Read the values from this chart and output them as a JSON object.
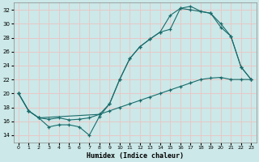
{
  "xlabel": "Humidex (Indice chaleur)",
  "bg_color": "#cce8e8",
  "grid_color": "#e8c8c8",
  "line_color": "#1a6b6b",
  "xlim": [
    -0.5,
    23.5
  ],
  "ylim": [
    13,
    33
  ],
  "yticks": [
    14,
    16,
    18,
    20,
    22,
    24,
    26,
    28,
    30,
    32
  ],
  "xticks": [
    0,
    1,
    2,
    3,
    4,
    5,
    6,
    7,
    8,
    9,
    10,
    11,
    12,
    13,
    14,
    15,
    16,
    17,
    18,
    19,
    20,
    21,
    22,
    23
  ],
  "curve1_x": [
    0,
    1,
    2,
    3,
    4,
    5,
    6,
    7,
    8,
    9,
    10,
    11,
    12,
    13,
    14,
    15,
    16,
    17,
    18,
    19,
    20,
    21,
    22,
    23
  ],
  "curve1_y": [
    20,
    17.5,
    16.5,
    15.2,
    15.5,
    15.5,
    15.2,
    14.0,
    16.7,
    18.5,
    22.0,
    25.0,
    26.7,
    27.8,
    28.8,
    29.2,
    32.2,
    32.5,
    31.8,
    31.5,
    30.0,
    28.2,
    23.8,
    22.0
  ],
  "curve2_x": [
    0,
    1,
    2,
    8,
    9,
    10,
    11,
    12,
    13,
    14,
    15,
    16,
    17,
    19,
    20,
    21,
    22,
    23
  ],
  "curve2_y": [
    20,
    17.5,
    16.5,
    17.0,
    18.5,
    22.0,
    25.0,
    26.7,
    27.8,
    28.8,
    31.2,
    32.2,
    32.0,
    31.5,
    29.5,
    28.2,
    23.8,
    22.0
  ],
  "curve3_x": [
    0,
    1,
    2,
    3,
    4,
    5,
    6,
    7,
    8,
    9,
    10,
    11,
    12,
    13,
    14,
    15,
    16,
    17,
    18,
    19,
    20,
    21,
    22,
    23
  ],
  "curve3_y": [
    20.0,
    17.5,
    16.5,
    16.3,
    16.5,
    16.2,
    16.3,
    16.5,
    17.0,
    17.5,
    18.0,
    18.5,
    19.0,
    19.5,
    20.0,
    20.5,
    21.0,
    21.5,
    22.0,
    22.2,
    22.3,
    22.0,
    22.0,
    22.0
  ]
}
